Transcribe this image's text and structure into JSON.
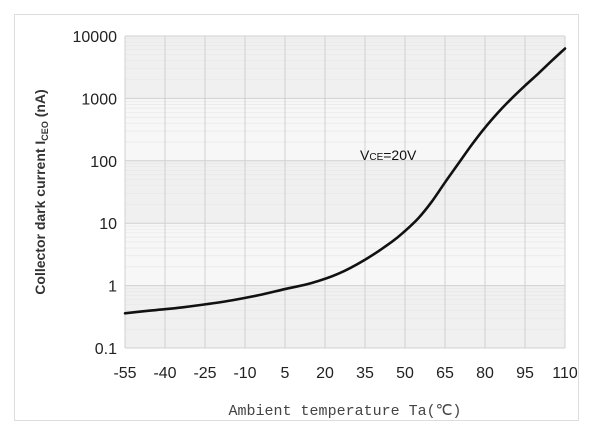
{
  "chart_data": {
    "type": "line",
    "title": "",
    "xlabel": "Ambient temperature Ta(℃)",
    "ylabel_main": "Collector dark current I",
    "ylabel_sub": "CEO",
    "ylabel_unit": " (nA)",
    "x_ticks": [
      "-55",
      "-40",
      "-25",
      "-10",
      "5",
      "20",
      "35",
      "50",
      "65",
      "80",
      "95",
      "110"
    ],
    "y_ticks": [
      "0.1",
      "1",
      "10",
      "100",
      "1000",
      "10000"
    ],
    "xlim": [
      -55,
      110
    ],
    "ylim": [
      0.1,
      10000
    ],
    "y_scale": "log",
    "grid": true,
    "annotation": {
      "main": "V",
      "sub": "CE",
      "rest": "=20V"
    },
    "series": [
      {
        "x": [
          -55,
          -45,
          -35,
          -25,
          -15,
          -5,
          5,
          15,
          25,
          35,
          45,
          50,
          55,
          60,
          65,
          70,
          75,
          80,
          85,
          90,
          95,
          100,
          105,
          110
        ],
        "y": [
          0.36,
          0.4,
          0.44,
          0.5,
          0.58,
          0.7,
          0.88,
          1.1,
          1.55,
          2.6,
          5.0,
          7.5,
          12,
          22,
          45,
          90,
          180,
          340,
          600,
          1000,
          1600,
          2500,
          4000,
          6300
        ]
      }
    ]
  }
}
